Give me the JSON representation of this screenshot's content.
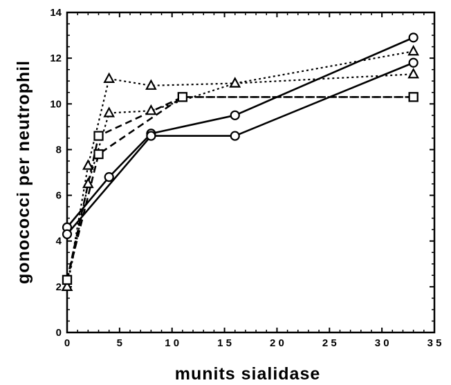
{
  "chart_data": {
    "type": "line",
    "title": "",
    "xlabel": "munits sialidase",
    "ylabel": "gonococci per neutrophil",
    "xlim": [
      0,
      35
    ],
    "ylim": [
      0,
      14
    ],
    "xticks": [
      0,
      5,
      10,
      15,
      20,
      25,
      30,
      35
    ],
    "xtick_labels": [
      "0",
      "5",
      "1 0",
      "1 5",
      "2 0",
      "2 5",
      "3 0",
      "3 5"
    ],
    "yticks": [
      0,
      2,
      4,
      6,
      8,
      10,
      12,
      14
    ],
    "ytick_labels": [
      "0",
      "2",
      "4",
      "6",
      "8",
      "10",
      "12",
      "14"
    ],
    "grid": false,
    "legend": "none",
    "series": [
      {
        "marker": "circle",
        "line_style": "solid",
        "x": [
          0,
          4,
          8,
          16,
          33
        ],
        "y": [
          4.6,
          6.8,
          8.7,
          9.5,
          12.9
        ]
      },
      {
        "marker": "circle",
        "line_style": "solid",
        "x": [
          0,
          8,
          16,
          33
        ],
        "y": [
          4.3,
          8.6,
          8.6,
          11.8
        ]
      },
      {
        "marker": "triangle",
        "line_style": "dotted",
        "x": [
          0,
          2,
          4,
          8,
          16,
          33
        ],
        "y": [
          2.0,
          7.3,
          11.1,
          10.8,
          10.9,
          12.3
        ]
      },
      {
        "marker": "triangle",
        "line_style": "dotted",
        "x": [
          0,
          2,
          4,
          8,
          16,
          33
        ],
        "y": [
          2.0,
          6.5,
          9.6,
          9.7,
          10.9,
          11.3
        ]
      },
      {
        "marker": "square",
        "line_style": "dashed",
        "x": [
          0,
          3,
          11,
          33
        ],
        "y": [
          2.3,
          8.6,
          10.3,
          10.3
        ]
      },
      {
        "marker": "square",
        "line_style": "dashed",
        "x": [
          0,
          3,
          11,
          33
        ],
        "y": [
          2.3,
          7.8,
          10.3,
          10.3
        ]
      }
    ]
  }
}
